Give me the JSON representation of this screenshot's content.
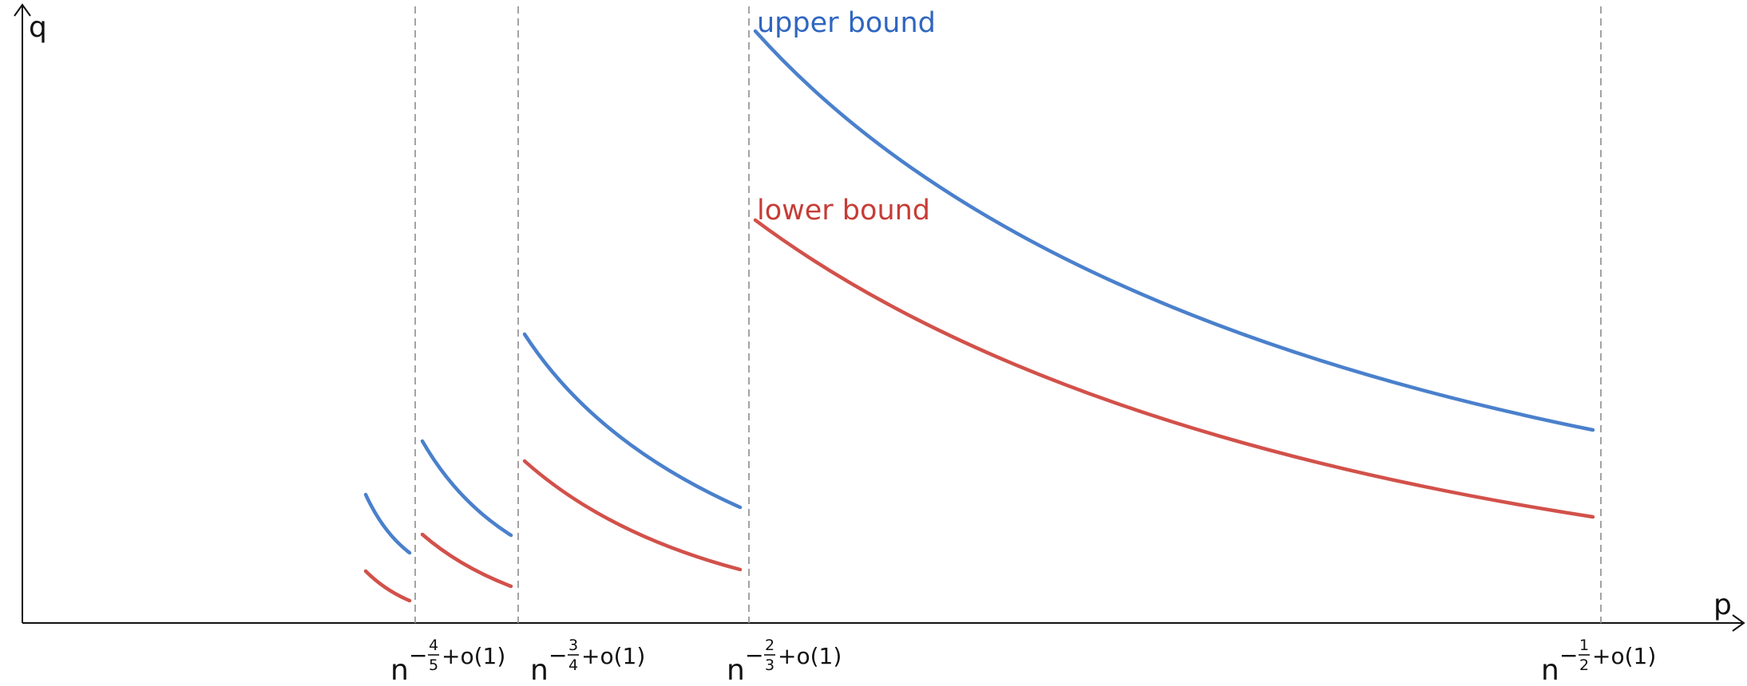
{
  "axes": {
    "y_label": "q",
    "x_label": "p"
  },
  "legend": {
    "upper": "upper bound",
    "lower": "lower bound"
  },
  "thresholds": [
    {
      "base": "n",
      "sign": "−",
      "num": "4",
      "den": "5",
      "rest": "+o(1)"
    },
    {
      "base": "n",
      "sign": "−",
      "num": "3",
      "den": "4",
      "rest": "+o(1)"
    },
    {
      "base": "n",
      "sign": "−",
      "num": "2",
      "den": "3",
      "rest": "+o(1)"
    },
    {
      "base": "n",
      "sign": "−",
      "num": "1",
      "den": "2",
      "rest": "+o(1)"
    }
  ]
}
